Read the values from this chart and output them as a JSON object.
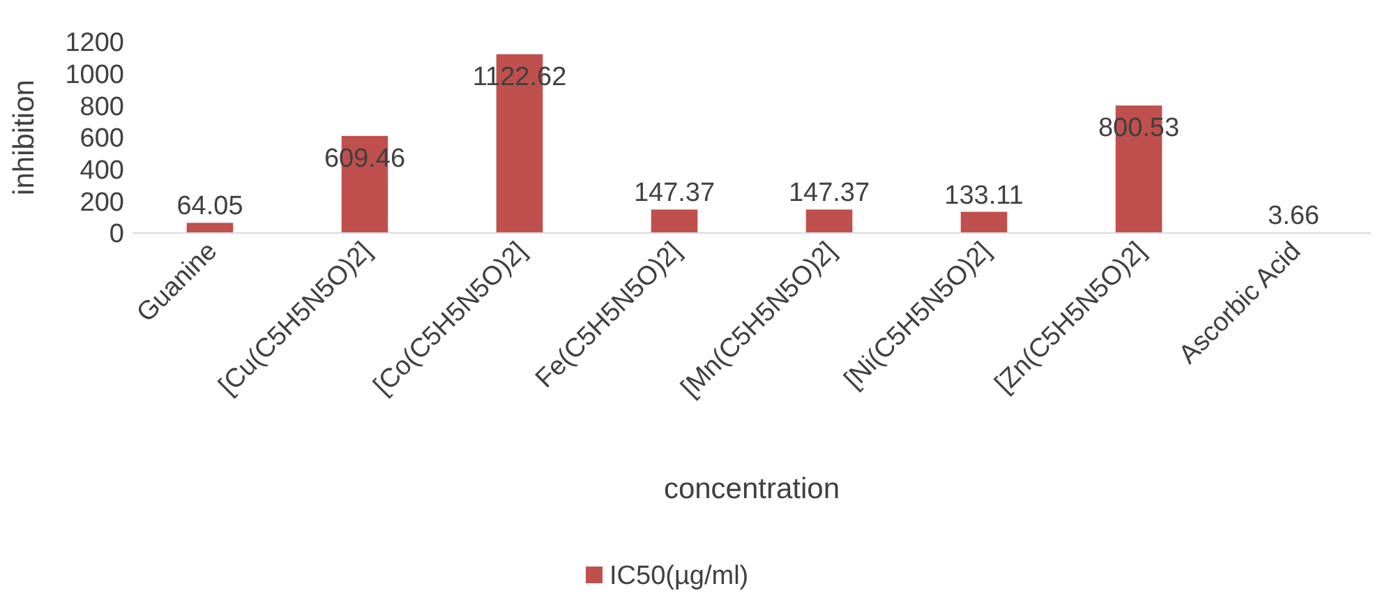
{
  "chart_data": {
    "type": "bar",
    "xlabel": "concentration",
    "ylabel": "inhibition",
    "categories": [
      "Guanine",
      "[Cu(C5H5N5O)2]",
      "[Co(C5H5N5O)2]",
      "Fe(C5H5N5O)2]",
      "[Mn(C5H5N5O)2]",
      "[Ni(C5H5N5O)2]",
      "[Zn(C5H5N5O)2]",
      "Ascorbic Acid"
    ],
    "series": [
      {
        "name": "IC50(µg/ml)",
        "color": "#c0504d",
        "values": [
          64.05,
          609.46,
          1122.62,
          147.37,
          147.37,
          133.11,
          800.53,
          3.66
        ]
      }
    ],
    "ylim": [
      0,
      1200
    ],
    "yticks": [
      0,
      200,
      400,
      600,
      800,
      1000,
      1200
    ],
    "data_labels": true,
    "legend": "bottom",
    "grid": false
  }
}
